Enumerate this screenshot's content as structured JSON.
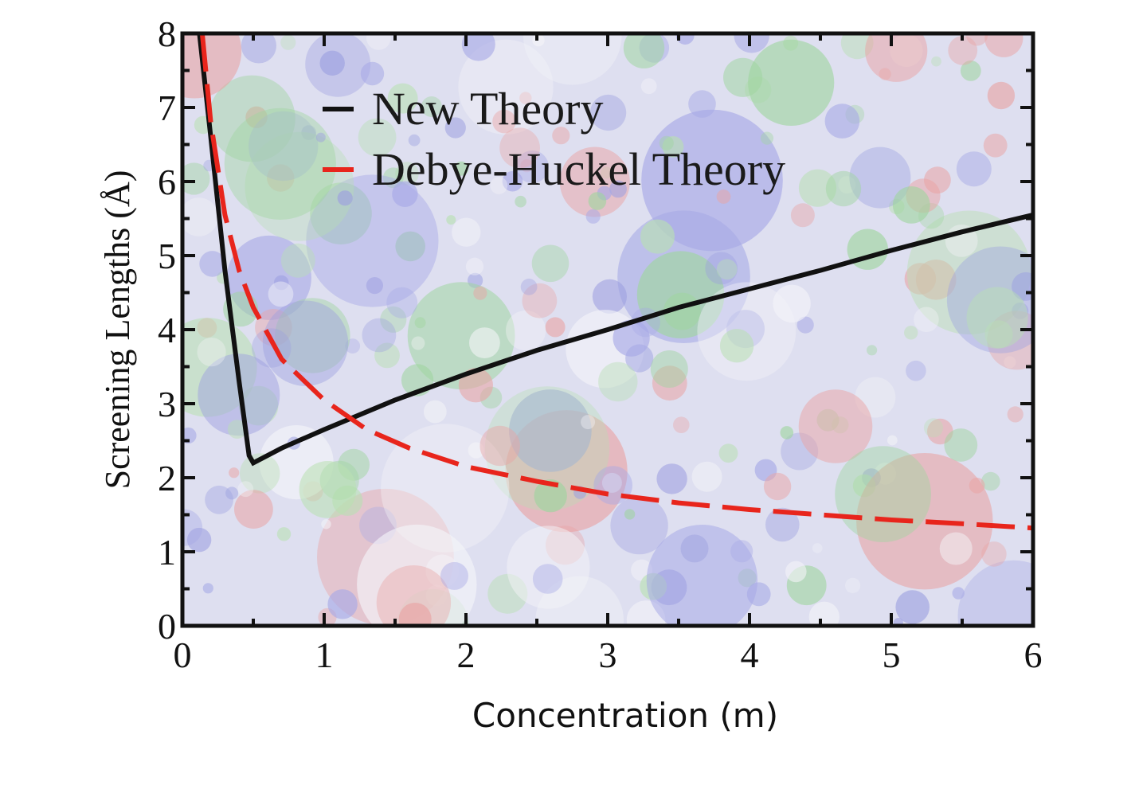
{
  "chart_data": {
    "type": "line",
    "xlabel": "Concentration (m)",
    "ylabel": "Screening Lengths (Å)",
    "xlim": [
      0,
      6
    ],
    "ylim": [
      0,
      8
    ],
    "x_ticks": [
      "0",
      "1",
      "2",
      "3",
      "4",
      "5",
      "6"
    ],
    "y_ticks": [
      "0",
      "1",
      "2",
      "3",
      "4",
      "5",
      "6",
      "7",
      "8"
    ],
    "grid": false,
    "legend_position": "top-left",
    "background": "molecular-simulation-image",
    "series": [
      {
        "name": "New Theory",
        "color": "#111111",
        "style": "solid",
        "x": [
          0.12,
          0.2,
          0.3,
          0.4,
          0.47,
          0.5,
          0.7,
          1.0,
          1.5,
          2.0,
          2.5,
          3.0,
          3.5,
          4.0,
          4.5,
          5.0,
          5.5,
          6.0
        ],
        "y": [
          8.0,
          6.6,
          4.8,
          3.3,
          2.3,
          2.2,
          2.4,
          2.65,
          3.05,
          3.4,
          3.72,
          4.0,
          4.3,
          4.55,
          4.8,
          5.07,
          5.32,
          5.55
        ]
      },
      {
        "name": "Debye-Huckel Theory",
        "color": "#e8251c",
        "style": "dashed",
        "x": [
          0.14,
          0.2,
          0.3,
          0.4,
          0.5,
          0.7,
          1.0,
          1.3,
          1.6,
          2.0,
          2.5,
          3.0,
          3.5,
          4.0,
          4.5,
          5.0,
          5.5,
          6.0
        ],
        "y": [
          8.0,
          6.8,
          5.55,
          4.8,
          4.3,
          3.6,
          3.05,
          2.65,
          2.4,
          2.15,
          1.95,
          1.78,
          1.66,
          1.57,
          1.5,
          1.43,
          1.38,
          1.32
        ]
      }
    ]
  }
}
